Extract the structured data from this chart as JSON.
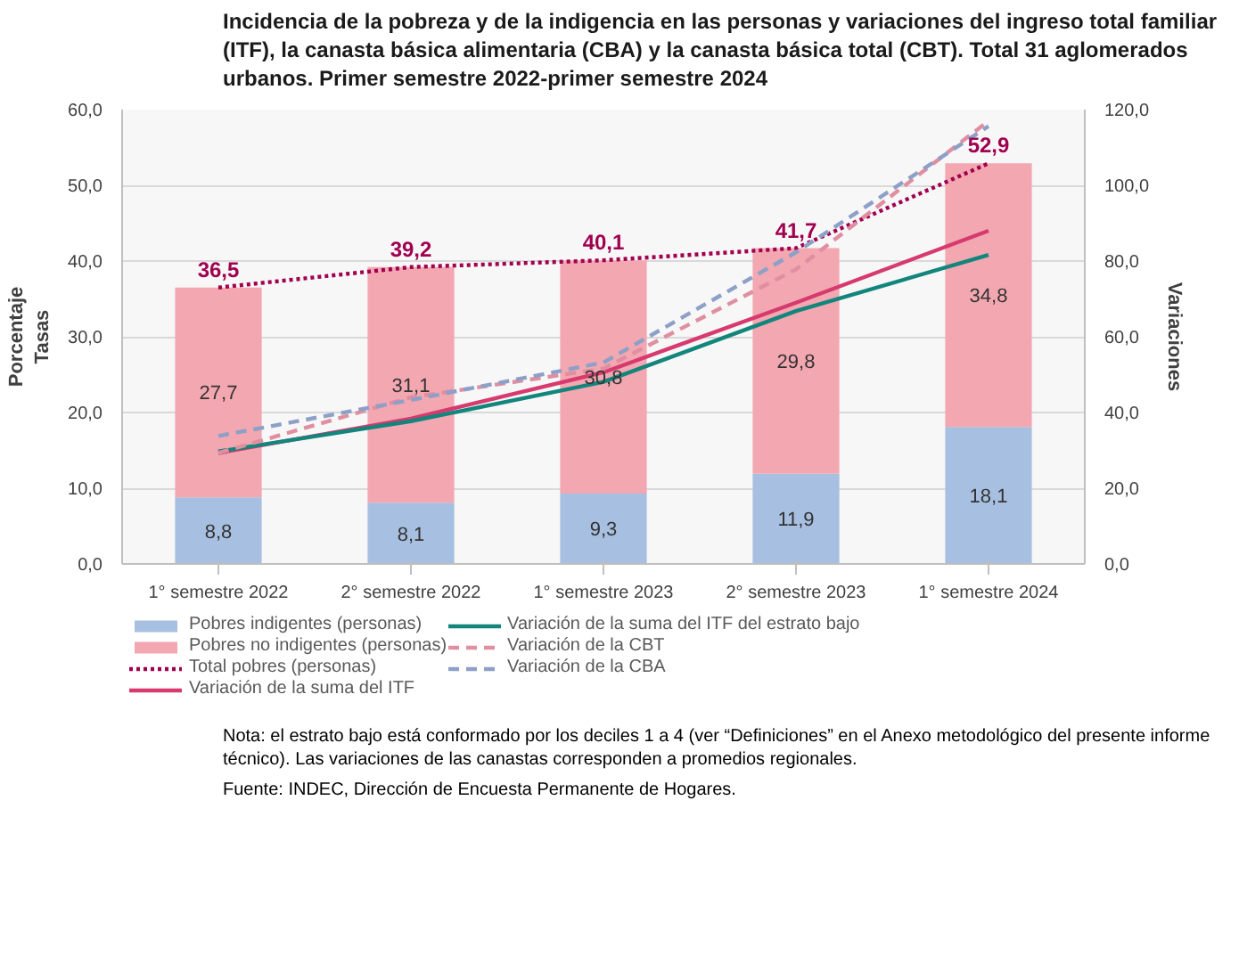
{
  "chart_data": {
    "type": "bar",
    "stacked": true,
    "title": "Incidencia de la pobreza y de la indigencia en las personas y variaciones del ingreso total familiar (ITF), la canasta básica alimentaria (CBA) y la canasta básica total (CBT). Total 31 aglomerados urbanos. Primer semestre 2022-primer semestre 2024",
    "categories": [
      "1° semestre 2022",
      "2° semestre 2022",
      "1° semestre 2023",
      "2° semestre 2023",
      "1° semestre 2024"
    ],
    "ylabel": "Porcentaje\nTasas",
    "y2label": "Variaciones",
    "ylim": [
      0,
      60
    ],
    "yticks": [
      {
        "value": 0,
        "label": "0,0"
      },
      {
        "value": 10,
        "label": "10,0"
      },
      {
        "value": 20,
        "label": "20,0"
      },
      {
        "value": 30,
        "label": "30,0"
      },
      {
        "value": 40,
        "label": "40,0"
      },
      {
        "value": 50,
        "label": "50,0"
      },
      {
        "value": 60,
        "label": "60,0"
      }
    ],
    "y2lim": [
      0,
      120
    ],
    "y2ticks": [
      {
        "value": 0,
        "label": "0,0"
      },
      {
        "value": 20,
        "label": "20,0"
      },
      {
        "value": 40,
        "label": "40,0"
      },
      {
        "value": 60,
        "label": "60,0"
      },
      {
        "value": 80,
        "label": "80,0"
      },
      {
        "value": 100,
        "label": "100,0"
      },
      {
        "value": 120,
        "label": "120,0"
      }
    ],
    "grid": "y",
    "legend": "bottom",
    "series": [
      {
        "name": "Pobres indigentes (personas)",
        "type": "bar",
        "color": "#a7bfe0",
        "values": [
          8.8,
          8.1,
          9.3,
          11.9,
          18.1
        ],
        "value_labels": [
          "8,8",
          "8,1",
          "9,3",
          "11,9",
          "18,1"
        ]
      },
      {
        "name": "Pobres no indigentes (personas)",
        "type": "bar",
        "color": "#f2a7b1",
        "values": [
          27.7,
          31.1,
          30.8,
          29.8,
          34.8
        ],
        "value_labels": [
          "27,7",
          "31,1",
          "30,8",
          "29,8",
          "34,8"
        ]
      },
      {
        "name": "Total pobres (personas)",
        "type": "line",
        "color": "#a0004f",
        "line_style": "dotted",
        "values": [
          36.5,
          39.2,
          40.1,
          41.7,
          52.9
        ],
        "value_labels": [
          "36,5",
          "39,2",
          "40,1",
          "41,7",
          "52,9"
        ]
      },
      {
        "name": "Variación de la suma del ITF",
        "type": "line",
        "axis": "y2",
        "color": "#d63a6e",
        "line_style": "solid",
        "values": [
          29.3,
          38.4,
          50.6,
          69.0,
          88.0
        ]
      },
      {
        "name": "Variación de la suma del ITF del estrato bajo",
        "type": "line",
        "axis": "y2",
        "color": "#12857c",
        "line_style": "solid",
        "values": [
          29.7,
          37.7,
          48.1,
          66.8,
          81.6
        ]
      },
      {
        "name": "Variación de la CBT",
        "type": "line",
        "axis": "y2",
        "color": "#e08fa0",
        "line_style": "dashed",
        "values": [
          29.3,
          44.0,
          51.6,
          77.8,
          117.0
        ]
      },
      {
        "name": "Variación de la CBA",
        "type": "line",
        "axis": "y2",
        "color": "#8da0c8",
        "line_style": "dashed",
        "values": [
          33.8,
          43.3,
          53.2,
          82.3,
          115.6
        ]
      }
    ],
    "annotations": [
      "Nota: el estrato bajo está conformado por los deciles 1 a 4 (ver “Definiciones” en el Anexo metodológico del presente informe técnico). Las variaciones de las canastas corresponden a promedios regionales.",
      "Fuente: INDEC, Dirección de Encuesta Permanente de Hogares."
    ]
  }
}
